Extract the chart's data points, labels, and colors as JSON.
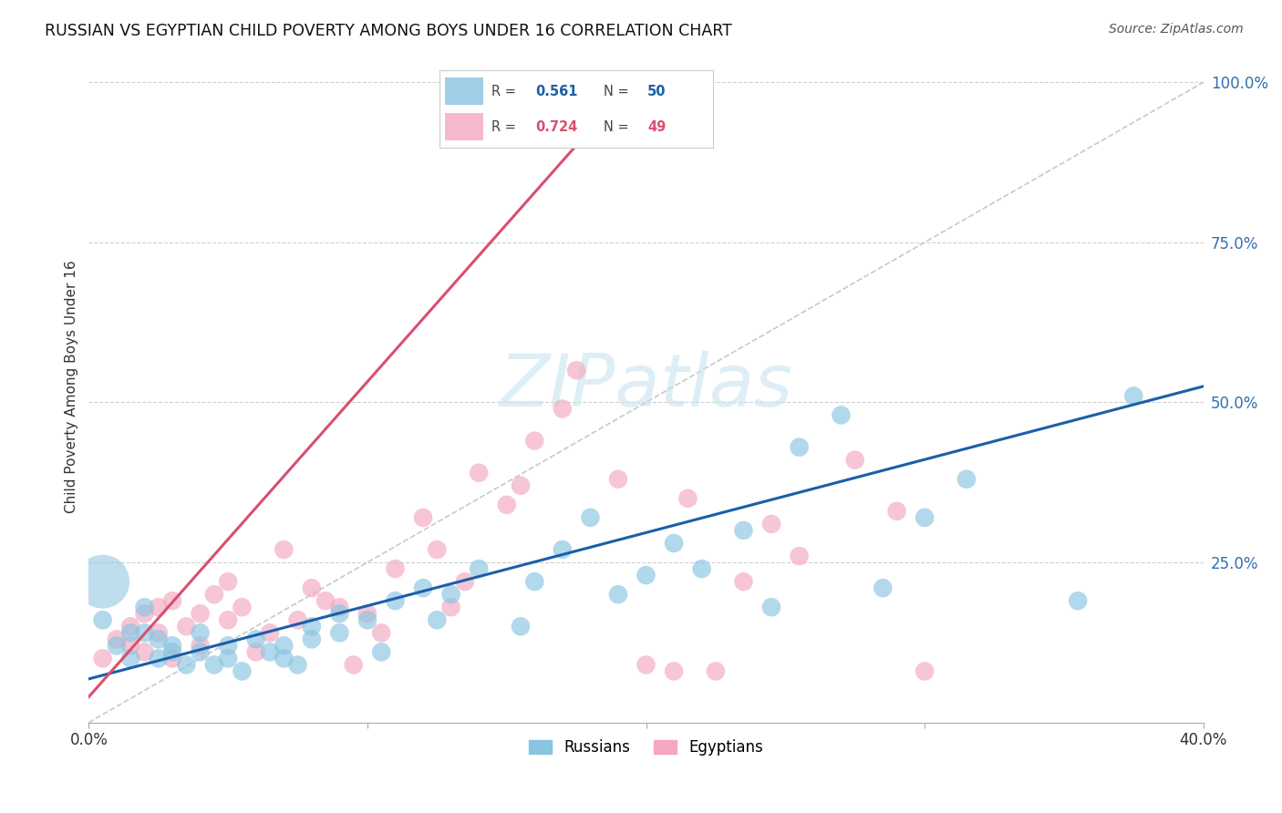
{
  "title": "RUSSIAN VS EGYPTIAN CHILD POVERTY AMONG BOYS UNDER 16 CORRELATION CHART",
  "source": "Source: ZipAtlas.com",
  "ylabel": "Child Poverty Among Boys Under 16",
  "xlim": [
    0.0,
    0.4
  ],
  "ylim": [
    0.0,
    1.05
  ],
  "yticks": [
    0.25,
    0.5,
    0.75,
    1.0
  ],
  "ytick_labels": [
    "25.0%",
    "50.0%",
    "75.0%",
    "100.0%"
  ],
  "xticks": [
    0.0,
    0.1,
    0.2,
    0.3,
    0.4
  ],
  "xtick_labels": [
    "0.0%",
    "",
    "",
    "",
    "40.0%"
  ],
  "russian_R": "0.561",
  "russian_N": "50",
  "egyptian_R": "0.724",
  "egyptian_N": "49",
  "russian_color": "#89c4e1",
  "egyptian_color": "#f4a8c0",
  "russian_line_color": "#1a5fa8",
  "egyptian_line_color": "#d94f6e",
  "diagonal_color": "#c8c8c8",
  "background_color": "#ffffff",
  "watermark": "ZIPatlas",
  "russian_line_x0": 0.0,
  "russian_line_y0": 0.068,
  "russian_line_x1": 0.4,
  "russian_line_y1": 0.525,
  "egyptian_line_x0": 0.0,
  "egyptian_line_y0": 0.04,
  "egyptian_line_x1": 0.195,
  "egyptian_line_y1": 1.0,
  "russian_scatter_x": [
    0.005,
    0.01,
    0.015,
    0.015,
    0.02,
    0.02,
    0.025,
    0.025,
    0.03,
    0.03,
    0.035,
    0.04,
    0.04,
    0.045,
    0.05,
    0.05,
    0.055,
    0.06,
    0.065,
    0.07,
    0.07,
    0.075,
    0.08,
    0.08,
    0.09,
    0.09,
    0.1,
    0.105,
    0.11,
    0.12,
    0.125,
    0.13,
    0.14,
    0.155,
    0.16,
    0.17,
    0.18,
    0.19,
    0.2,
    0.21,
    0.22,
    0.235,
    0.245,
    0.255,
    0.27,
    0.285,
    0.3,
    0.315,
    0.355,
    0.375
  ],
  "russian_scatter_y": [
    0.16,
    0.12,
    0.1,
    0.14,
    0.14,
    0.18,
    0.1,
    0.13,
    0.12,
    0.11,
    0.09,
    0.11,
    0.14,
    0.09,
    0.12,
    0.1,
    0.08,
    0.13,
    0.11,
    0.1,
    0.12,
    0.09,
    0.15,
    0.13,
    0.17,
    0.14,
    0.16,
    0.11,
    0.19,
    0.21,
    0.16,
    0.2,
    0.24,
    0.15,
    0.22,
    0.27,
    0.32,
    0.2,
    0.23,
    0.28,
    0.24,
    0.3,
    0.18,
    0.43,
    0.48,
    0.21,
    0.32,
    0.38,
    0.19,
    0.51
  ],
  "russian_large_x": [
    0.005
  ],
  "russian_large_y": [
    0.22
  ],
  "egyptian_scatter_x": [
    0.005,
    0.01,
    0.015,
    0.015,
    0.02,
    0.02,
    0.025,
    0.025,
    0.03,
    0.03,
    0.035,
    0.04,
    0.04,
    0.045,
    0.05,
    0.05,
    0.055,
    0.06,
    0.065,
    0.07,
    0.075,
    0.08,
    0.085,
    0.09,
    0.095,
    0.1,
    0.105,
    0.11,
    0.12,
    0.125,
    0.13,
    0.135,
    0.14,
    0.15,
    0.155,
    0.16,
    0.17,
    0.175,
    0.19,
    0.2,
    0.21,
    0.215,
    0.225,
    0.235,
    0.245,
    0.255,
    0.275,
    0.29,
    0.3
  ],
  "egyptian_scatter_y": [
    0.1,
    0.13,
    0.12,
    0.15,
    0.17,
    0.11,
    0.14,
    0.18,
    0.19,
    0.1,
    0.15,
    0.17,
    0.12,
    0.2,
    0.16,
    0.22,
    0.18,
    0.11,
    0.14,
    0.27,
    0.16,
    0.21,
    0.19,
    0.18,
    0.09,
    0.17,
    0.14,
    0.24,
    0.32,
    0.27,
    0.18,
    0.22,
    0.39,
    0.34,
    0.37,
    0.44,
    0.49,
    0.55,
    0.38,
    0.09,
    0.08,
    0.35,
    0.08,
    0.22,
    0.31,
    0.26,
    0.41,
    0.33,
    0.08
  ]
}
